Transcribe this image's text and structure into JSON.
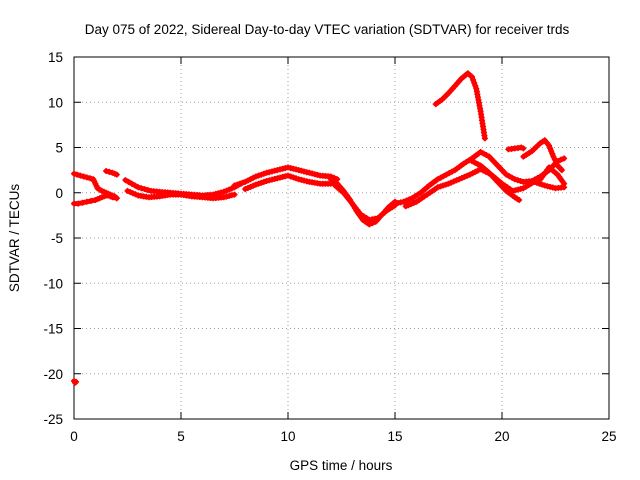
{
  "chart_data": {
    "type": "scatter",
    "title": "Day 075 of 2022, Sidereal Day-to-day VTEC variation (SDTVAR) for receiver trds",
    "xlabel": "GPS time / hours",
    "ylabel": "SDTVAR / TECUs",
    "xlim": [
      0,
      25
    ],
    "ylim": [
      -25,
      15
    ],
    "x_ticks": [
      0,
      5,
      10,
      15,
      20,
      25
    ],
    "y_ticks": [
      -25,
      -20,
      -15,
      -10,
      -5,
      0,
      5,
      10,
      15
    ],
    "grid": true,
    "marker": "+",
    "series": [
      {
        "name": "SDTVAR",
        "color": "#ff0000",
        "segments": [
          {
            "x": [
              0.0,
              0.05,
              0.1
            ],
            "y": [
              -20.8,
              -21.0,
              -20.9
            ]
          },
          {
            "x": [
              0.0,
              0.2,
              0.4,
              0.6,
              0.8,
              1.0,
              1.2,
              1.4,
              1.6,
              1.8,
              2.0
            ],
            "y": [
              -1.2,
              -1.2,
              -1.1,
              -1.0,
              -0.9,
              -0.8,
              -0.6,
              -0.4,
              -0.3,
              -0.5,
              -0.6
            ]
          },
          {
            "x": [
              0.0,
              0.3,
              0.6,
              0.9,
              1.0,
              1.1,
              1.3,
              1.5,
              1.7,
              1.9,
              2.0
            ],
            "y": [
              2.1,
              1.9,
              1.7,
              1.5,
              1.0,
              0.5,
              0.2,
              0.0,
              -0.2,
              -0.4,
              -0.6
            ]
          },
          {
            "x": [
              1.5,
              1.8,
              2.0
            ],
            "y": [
              2.4,
              2.2,
              2.0
            ]
          },
          {
            "x": [
              2.4,
              2.7,
              3.0,
              3.3,
              3.6,
              4.0,
              4.5,
              5.0,
              5.5,
              6.0,
              6.5,
              7.0,
              7.5,
              7.8
            ],
            "y": [
              1.4,
              1.0,
              0.6,
              0.4,
              0.2,
              0.1,
              0.0,
              -0.1,
              -0.2,
              -0.3,
              -0.2,
              0.1,
              0.6,
              1.0
            ]
          },
          {
            "x": [
              2.5,
              3.0,
              3.5,
              4.0,
              4.5,
              5.0,
              5.5,
              6.0,
              6.5,
              7.0,
              7.5
            ],
            "y": [
              0.2,
              -0.3,
              -0.5,
              -0.4,
              -0.2,
              -0.2,
              -0.4,
              -0.5,
              -0.6,
              -0.5,
              -0.2
            ]
          },
          {
            "x": [
              7.5,
              8.0,
              8.5,
              9.0,
              9.5,
              10.0,
              10.5,
              11.0,
              11.5,
              12.0,
              12.3
            ],
            "y": [
              0.8,
              1.2,
              1.8,
              2.2,
              2.5,
              2.8,
              2.5,
              2.2,
              1.9,
              1.8,
              1.5
            ]
          },
          {
            "x": [
              8.0,
              8.5,
              9.0,
              9.5,
              10.0,
              10.5,
              11.0,
              11.5,
              12.0
            ],
            "y": [
              0.4,
              0.9,
              1.3,
              1.6,
              1.9,
              1.5,
              1.2,
              1.0,
              1.0
            ]
          },
          {
            "x": [
              12.0,
              12.3,
              12.6,
              12.9,
              13.2,
              13.5,
              13.8,
              14.1,
              14.4,
              14.7,
              15.0
            ],
            "y": [
              1.5,
              1.0,
              0.2,
              -0.8,
              -2.0,
              -3.0,
              -3.5,
              -3.2,
              -2.4,
              -1.6,
              -1.0
            ]
          },
          {
            "x": [
              12.2,
              12.6,
              13.0,
              13.4,
              13.8,
              14.2,
              14.6,
              15.0
            ],
            "y": [
              0.8,
              0.0,
              -1.2,
              -2.4,
              -3.0,
              -2.8,
              -2.0,
              -1.4
            ]
          },
          {
            "x": [
              15.0,
              15.4,
              15.8,
              16.2,
              16.6,
              17.0,
              17.4,
              17.8,
              18.2,
              18.6,
              19.0,
              19.4,
              19.8,
              20.2,
              20.6,
              21.0,
              21.4,
              21.8,
              22.2,
              22.6,
              22.9
            ],
            "y": [
              -1.2,
              -1.0,
              -0.6,
              0.0,
              0.8,
              1.5,
              2.0,
              2.5,
              3.2,
              3.8,
              4.5,
              4.0,
              3.0,
              2.0,
              1.5,
              1.2,
              1.3,
              1.8,
              2.5,
              3.5,
              3.8
            ]
          },
          {
            "x": [
              15.5,
              16.0,
              16.5,
              17.0,
              17.5,
              18.0,
              18.5,
              19.0,
              19.5,
              20.0,
              20.5,
              21.0,
              21.5,
              22.0,
              22.5,
              22.9
            ],
            "y": [
              -1.5,
              -1.0,
              -0.2,
              0.6,
              1.0,
              1.5,
              2.0,
              2.6,
              2.0,
              1.0,
              0.2,
              0.5,
              1.2,
              0.8,
              0.5,
              0.6
            ]
          },
          {
            "x": [
              18.6,
              19.0,
              19.4,
              19.8,
              20.2,
              20.6,
              20.8
            ],
            "y": [
              3.5,
              3.0,
              2.2,
              1.2,
              0.2,
              -0.5,
              -0.8
            ]
          },
          {
            "x": [
              16.9,
              17.2,
              17.5,
              17.8,
              18.1,
              18.4,
              18.6,
              18.8,
              19.0,
              19.2
            ],
            "y": [
              9.8,
              10.3,
              11.0,
              11.8,
              12.6,
              13.2,
              12.8,
              11.5,
              9.0,
              6.0
            ]
          },
          {
            "x": [
              20.3,
              20.6,
              20.9,
              21.0
            ],
            "y": [
              4.8,
              4.9,
              5.0,
              4.9
            ]
          },
          {
            "x": [
              21.0,
              21.4,
              21.8,
              22.0,
              22.2,
              22.4,
              22.6,
              22.8
            ],
            "y": [
              4.0,
              4.6,
              5.5,
              5.8,
              5.2,
              4.0,
              3.0,
              2.5
            ]
          },
          {
            "x": [
              21.8,
              22.2,
              22.6,
              22.9
            ],
            "y": [
              1.5,
              2.8,
              2.0,
              1.0
            ]
          }
        ]
      }
    ]
  }
}
